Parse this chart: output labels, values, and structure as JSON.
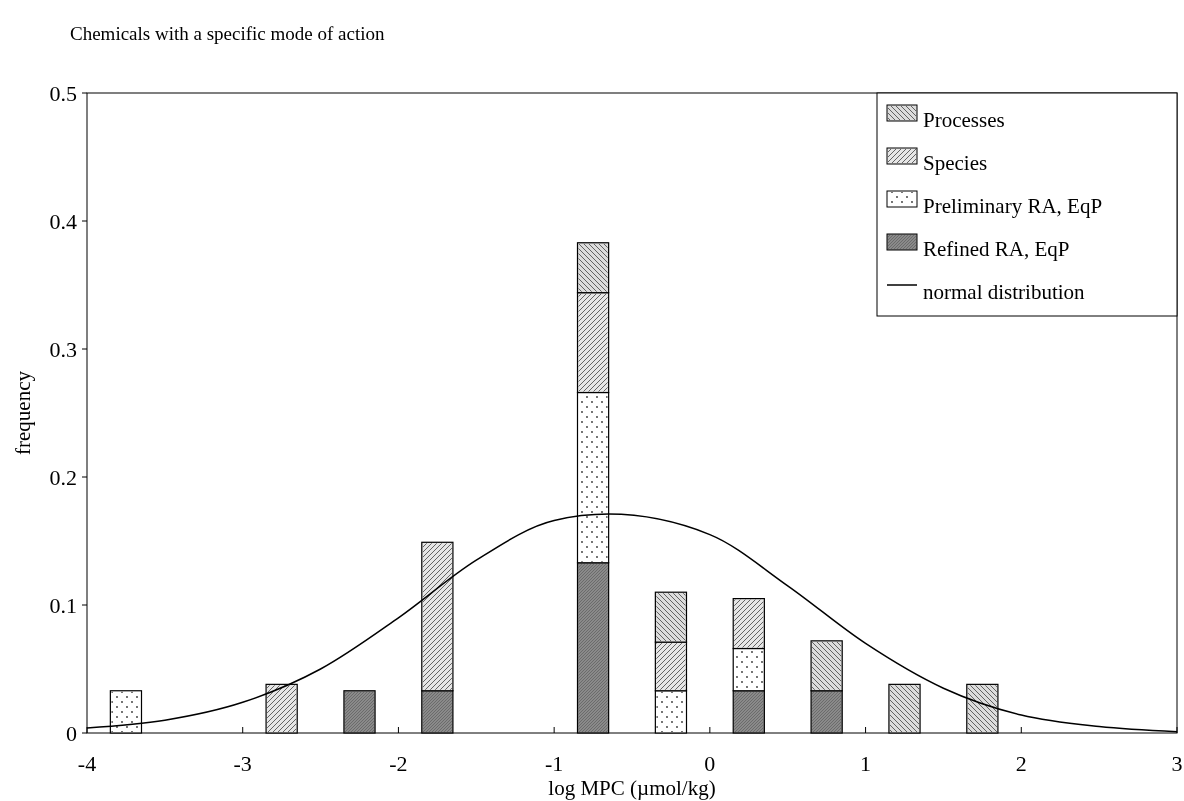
{
  "chart_data": {
    "type": "bar",
    "stacked": true,
    "title": "Chemicals with a specific mode of action",
    "xlabel": "log MPC (µmol/kg)",
    "ylabel": "frequency",
    "x": [
      -3.75,
      -2.75,
      -2.25,
      -1.75,
      -0.75,
      -0.25,
      0.25,
      0.75,
      1.25,
      1.75
    ],
    "series": [
      {
        "name": "Refined RA, EqP",
        "color": "#8a8a8a",
        "values": [
          null,
          null,
          0.033,
          0.033,
          0.133,
          null,
          0.033,
          0.033,
          null,
          null
        ]
      },
      {
        "name": "Preliminary RA, EqP",
        "color": "#ffffff",
        "values": [
          0.033,
          null,
          null,
          null,
          0.133,
          0.033,
          0.033,
          null,
          null,
          null
        ]
      },
      {
        "name": "Species",
        "color": "#e6e6e6",
        "values": [
          null,
          0.038,
          null,
          0.116,
          0.078,
          0.038,
          0.039,
          null,
          null,
          null
        ]
      },
      {
        "name": "Processes",
        "color": "#dcdcdc",
        "values": [
          null,
          null,
          null,
          null,
          0.039,
          0.039,
          null,
          0.039,
          0.038,
          0.038
        ]
      },
      {
        "name": "normal distribution",
        "type": "line",
        "color": "#000000",
        "x": [
          -4,
          -3.5,
          -3,
          -2.5,
          -2,
          -1.5,
          -1,
          -0.65,
          0,
          0.5,
          1,
          1.5,
          2,
          2.5,
          3
        ],
        "values": [
          0.004,
          0.01,
          0.024,
          0.05,
          0.09,
          0.135,
          0.166,
          0.171,
          0.155,
          0.115,
          0.07,
          0.035,
          0.014,
          0.005,
          0.001
        ]
      }
    ],
    "xlim": [
      -4,
      3
    ],
    "xticks": [
      -4,
      -3,
      -2,
      -1,
      0,
      1,
      2,
      3
    ],
    "ylim": [
      0,
      0.5
    ],
    "yticks": [
      0,
      0.1,
      0.2,
      0.3,
      0.4,
      0.5
    ],
    "legend": "top right",
    "grid": false
  }
}
